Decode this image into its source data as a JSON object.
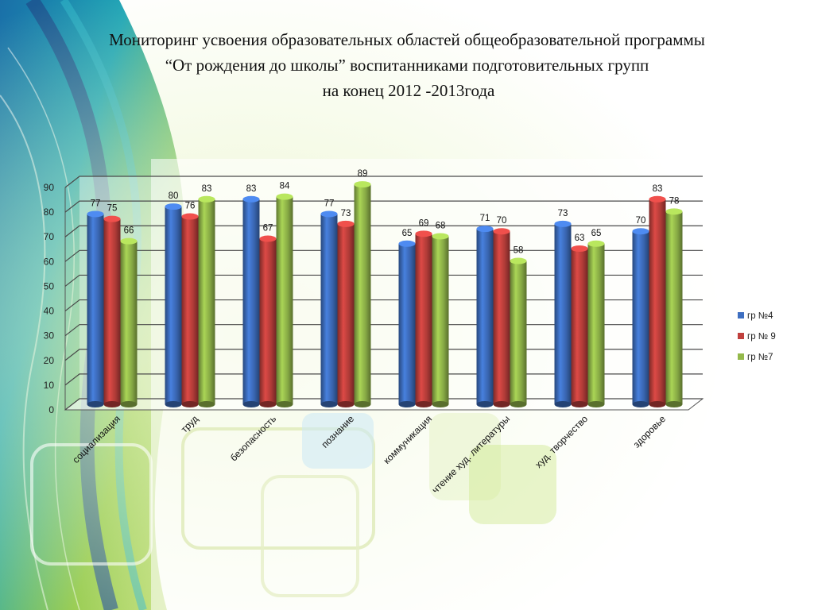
{
  "slide": {
    "title_line1": "Мониторинг усвоения  образовательных областей общеобразовательной программы",
    "title_line2": "“От рождения до школы” воспитанниками подготовительных групп",
    "title_line3": "на конец 2012 -2013года"
  },
  "colors": {
    "background_green": "#8cc63f",
    "background_teal": "#1a9fb0",
    "background_blue": "#1e4f8c"
  },
  "chart_data": {
    "type": "bar",
    "style": "3d-cylinder",
    "title": "",
    "xlabel": "",
    "ylabel": "",
    "ylim": [
      0,
      90
    ],
    "yticks": [
      0,
      10,
      20,
      30,
      40,
      50,
      60,
      70,
      80,
      90
    ],
    "grid": true,
    "legend_position": "right",
    "categories": [
      "социализация",
      "труд",
      "безопасность",
      "познание",
      "коммуникация",
      "чтение худ. литературы",
      "худ. творчество",
      "здоровье"
    ],
    "series": [
      {
        "name": "гр №4",
        "color": "#3e6fc1",
        "values": [
          77,
          80,
          83,
          77,
          65,
          71,
          73,
          70
        ]
      },
      {
        "name": "гр № 9",
        "color": "#c0403d",
        "values": [
          75,
          76,
          67,
          73,
          69,
          70,
          63,
          83
        ]
      },
      {
        "name": "гр №7",
        "color": "#94b94b",
        "values": [
          66,
          83,
          84,
          89,
          68,
          58,
          65,
          78
        ]
      }
    ]
  }
}
